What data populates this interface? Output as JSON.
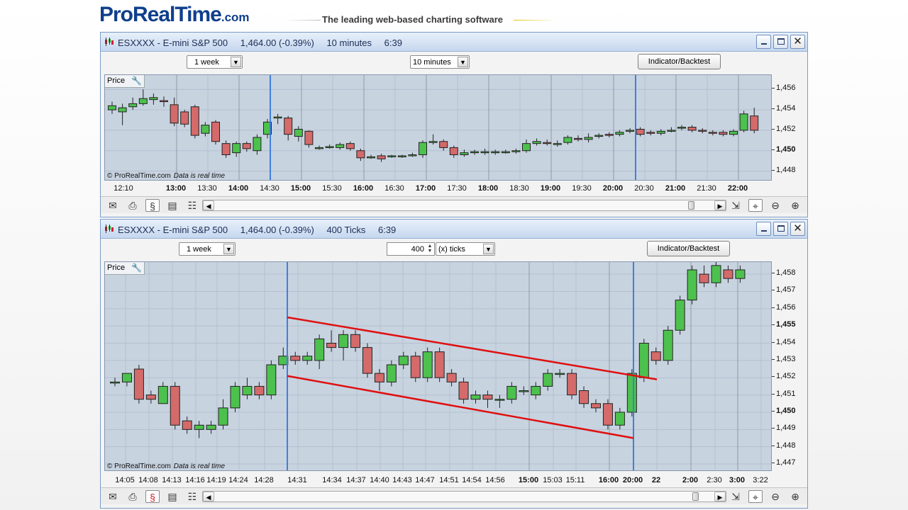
{
  "banner": {
    "logo_pro": "Pro",
    "logo_realtime": "RealTime",
    "logo_com": ".com",
    "tagline": "The leading web-based charting software"
  },
  "colors": {
    "up_candle": "#4dc14d",
    "down_candle": "#d46a6a",
    "vline": "#3f7fe0",
    "trendline": "#e01010",
    "plot_bg": "#c8d3e0"
  },
  "windows": [
    {
      "title": {
        "symbol": "ESXXXX - E-mini S&P 500",
        "price": "1,464.00 (-0.39%)",
        "timeframe": "10 minutes",
        "time": "6:39"
      },
      "controls": {
        "period_select": "1 week",
        "interval_select": "10 minutes",
        "indicator_button": "Indicator/Backtest"
      },
      "price_label": "Price",
      "copyright": "© ProRealTime.com",
      "data_note": "Data is real time",
      "y_ticks": [
        {
          "label": "1,456",
          "v": 1456,
          "bold": false
        },
        {
          "label": "1,454",
          "v": 1454,
          "bold": false
        },
        {
          "label": "1,452",
          "v": 1452,
          "bold": false
        },
        {
          "label": "1,450",
          "v": 1450,
          "bold": true
        },
        {
          "label": "1,448",
          "v": 1448,
          "bold": false
        }
      ],
      "x_ticks": [
        {
          "label": "12:10",
          "bold": false
        },
        {
          "label": "13:00",
          "bold": true
        },
        {
          "label": "13:30",
          "bold": false
        },
        {
          "label": "14:00",
          "bold": true
        },
        {
          "label": "14:30",
          "bold": false
        },
        {
          "label": "15:00",
          "bold": true
        },
        {
          "label": "15:30",
          "bold": false
        },
        {
          "label": "16:00",
          "bold": true
        },
        {
          "label": "16:30",
          "bold": false
        },
        {
          "label": "17:00",
          "bold": true
        },
        {
          "label": "17:30",
          "bold": false
        },
        {
          "label": "18:00",
          "bold": true
        },
        {
          "label": "18:30",
          "bold": false
        },
        {
          "label": "19:00",
          "bold": true
        },
        {
          "label": "19:30",
          "bold": false
        },
        {
          "label": "20:00",
          "bold": true
        },
        {
          "label": "20:30",
          "bold": false
        },
        {
          "label": "21:00",
          "bold": true
        },
        {
          "label": "21:30",
          "bold": false
        },
        {
          "label": "22:00",
          "bold": true
        }
      ],
      "candles": [
        [
          1454.0,
          1454.4,
          1453.6,
          1454.8
        ],
        [
          1453.8,
          1454.2,
          1452.5,
          1454.6
        ],
        [
          1454.3,
          1454.6,
          1454.0,
          1455.2
        ],
        [
          1454.6,
          1455.1,
          1454.4,
          1456.0
        ],
        [
          1455.0,
          1455.2,
          1454.5,
          1455.6
        ],
        [
          1454.9,
          1454.8,
          1454.3,
          1455.3
        ],
        [
          1454.5,
          1452.7,
          1452.4,
          1455.2
        ],
        [
          1453.8,
          1452.6,
          1452.3,
          1454.0
        ],
        [
          1454.3,
          1451.5,
          1451.2,
          1454.5
        ],
        [
          1451.7,
          1452.5,
          1451.4,
          1452.8
        ],
        [
          1452.8,
          1450.9,
          1450.6,
          1453.0
        ],
        [
          1450.7,
          1449.6,
          1449.3,
          1451.0
        ],
        [
          1449.8,
          1450.7,
          1449.4,
          1450.9
        ],
        [
          1450.7,
          1450.2,
          1449.9,
          1450.9
        ],
        [
          1450.0,
          1451.3,
          1449.6,
          1451.6
        ],
        [
          1451.6,
          1452.8,
          1451.2,
          1453.1
        ],
        [
          1453.3,
          1453.3,
          1452.6,
          1453.6
        ],
        [
          1453.2,
          1451.6,
          1451.0,
          1453.4
        ],
        [
          1451.4,
          1452.1,
          1450.9,
          1452.4
        ],
        [
          1451.9,
          1450.6,
          1450.3,
          1452.0
        ],
        [
          1450.3,
          1450.3,
          1450.1,
          1450.5
        ],
        [
          1450.4,
          1450.4,
          1450.2,
          1450.6
        ],
        [
          1450.3,
          1450.6,
          1450.1,
          1450.8
        ],
        [
          1450.7,
          1450.2,
          1450.0,
          1450.9
        ],
        [
          1450.0,
          1449.3,
          1449.0,
          1450.2
        ],
        [
          1449.3,
          1449.4,
          1449.2,
          1449.6
        ],
        [
          1449.5,
          1449.2,
          1448.9,
          1449.7
        ],
        [
          1449.5,
          1449.5,
          1449.3,
          1449.6
        ],
        [
          1449.5,
          1449.5,
          1449.3,
          1449.6
        ],
        [
          1449.6,
          1449.6,
          1449.4,
          1449.8
        ],
        [
          1449.6,
          1450.8,
          1449.3,
          1451.0
        ],
        [
          1450.8,
          1450.9,
          1450.6,
          1451.6
        ],
        [
          1450.9,
          1450.3,
          1450.0,
          1451.1
        ],
        [
          1450.3,
          1449.6,
          1449.3,
          1450.5
        ],
        [
          1449.6,
          1449.8,
          1449.4,
          1450.1
        ],
        [
          1449.8,
          1449.9,
          1449.6,
          1450.1
        ],
        [
          1449.8,
          1449.9,
          1449.6,
          1450.2
        ],
        [
          1449.8,
          1449.9,
          1449.6,
          1450.1
        ],
        [
          1449.9,
          1449.9,
          1449.7,
          1450.1
        ],
        [
          1449.9,
          1450.0,
          1449.7,
          1450.2
        ],
        [
          1450.0,
          1450.7,
          1449.8,
          1451.1
        ],
        [
          1450.7,
          1450.9,
          1450.5,
          1451.2
        ],
        [
          1450.8,
          1450.7,
          1450.5,
          1451.1
        ],
        [
          1450.6,
          1450.7,
          1450.4,
          1451.0
        ],
        [
          1450.8,
          1451.3,
          1450.6,
          1451.5
        ],
        [
          1451.2,
          1451.1,
          1450.9,
          1451.5
        ],
        [
          1451.1,
          1451.3,
          1450.8,
          1451.7
        ],
        [
          1451.4,
          1451.5,
          1451.2,
          1451.7
        ],
        [
          1451.6,
          1451.5,
          1451.3,
          1451.8
        ],
        [
          1451.6,
          1451.8,
          1451.4,
          1452.0
        ],
        [
          1452.0,
          1452.0,
          1451.7,
          1452.2
        ],
        [
          1452.1,
          1451.6,
          1451.4,
          1452.3
        ],
        [
          1451.8,
          1451.7,
          1451.5,
          1452.0
        ],
        [
          1451.7,
          1451.9,
          1451.5,
          1452.1
        ],
        [
          1452.0,
          1452.0,
          1451.8,
          1452.3
        ],
        [
          1452.2,
          1452.3,
          1452.0,
          1452.5
        ],
        [
          1452.3,
          1452.0,
          1451.8,
          1452.5
        ],
        [
          1452.0,
          1451.9,
          1451.7,
          1452.2
        ],
        [
          1451.8,
          1451.7,
          1451.5,
          1452.0
        ],
        [
          1451.8,
          1451.6,
          1451.4,
          1452.0
        ],
        [
          1451.6,
          1451.9,
          1451.4,
          1452.1
        ],
        [
          1452.0,
          1453.6,
          1451.8,
          1453.9
        ],
        [
          1453.4,
          1452.0,
          1451.7,
          1454.2
        ]
      ]
    },
    {
      "title": {
        "symbol": "ESXXXX - E-mini S&P 500",
        "price": "1,464.00 (-0.39%)",
        "timeframe": "400 Ticks",
        "time": "6:39"
      },
      "controls": {
        "period_select": "1 week",
        "tick_value": "400",
        "tick_unit_select": "(x) ticks",
        "indicator_button": "Indicator/Backtest"
      },
      "price_label": "Price",
      "copyright": "© ProRealTime.com",
      "data_note": "Data is real time",
      "y_ticks": [
        {
          "label": "1,458",
          "v": 1458,
          "bold": false
        },
        {
          "label": "1,457",
          "v": 1457,
          "bold": false
        },
        {
          "label": "1,456",
          "v": 1456,
          "bold": false
        },
        {
          "label": "1,455",
          "v": 1455,
          "bold": true
        },
        {
          "label": "1,454",
          "v": 1454,
          "bold": false
        },
        {
          "label": "1,453",
          "v": 1453,
          "bold": false
        },
        {
          "label": "1,452",
          "v": 1452,
          "bold": false
        },
        {
          "label": "1,451",
          "v": 1451,
          "bold": false
        },
        {
          "label": "1,450",
          "v": 1450,
          "bold": true
        },
        {
          "label": "1,449",
          "v": 1449,
          "bold": false
        },
        {
          "label": "1,448",
          "v": 1448,
          "bold": false
        },
        {
          "label": "1,447",
          "v": 1447,
          "bold": false
        }
      ],
      "x_ticks": [
        {
          "label": "14:05",
          "bold": false
        },
        {
          "label": "14:08",
          "bold": false
        },
        {
          "label": "14:13",
          "bold": false
        },
        {
          "label": "14:16",
          "bold": false
        },
        {
          "label": "14:19",
          "bold": false
        },
        {
          "label": "14:24",
          "bold": false
        },
        {
          "label": "14:28",
          "bold": false
        },
        {
          "label": "14:31",
          "bold": false
        },
        {
          "label": "14:34",
          "bold": false
        },
        {
          "label": "14:37",
          "bold": false
        },
        {
          "label": "14:40",
          "bold": false
        },
        {
          "label": "14:43",
          "bold": false
        },
        {
          "label": "14:47",
          "bold": false
        },
        {
          "label": "14:51",
          "bold": false
        },
        {
          "label": "14:54",
          "bold": false
        },
        {
          "label": "14:56",
          "bold": false
        },
        {
          "label": "15:00",
          "bold": true
        },
        {
          "label": "15:03",
          "bold": false
        },
        {
          "label": "15:11",
          "bold": false
        },
        {
          "label": "16:00",
          "bold": true
        },
        {
          "label": "20:00",
          "bold": true
        },
        {
          "label": "22",
          "bold": true
        },
        {
          "label": "2:00",
          "bold": true
        },
        {
          "label": "2:30",
          "bold": false
        },
        {
          "label": "3:00",
          "bold": true
        },
        {
          "label": "3:22",
          "bold": false
        }
      ],
      "candles": [
        [
          1451.75,
          1451.75,
          1451.5,
          1452.0
        ],
        [
          1451.75,
          1452.25,
          1451.5,
          1452.25
        ],
        [
          1452.5,
          1450.75,
          1450.5,
          1452.75
        ],
        [
          1451.0,
          1450.75,
          1450.5,
          1451.25
        ],
        [
          1450.5,
          1451.5,
          1450.5,
          1451.75
        ],
        [
          1451.5,
          1449.25,
          1449.0,
          1451.75
        ],
        [
          1449.5,
          1449.0,
          1448.75,
          1449.75
        ],
        [
          1449.0,
          1449.25,
          1448.5,
          1449.5
        ],
        [
          1449.0,
          1449.25,
          1448.75,
          1449.5
        ],
        [
          1449.25,
          1450.25,
          1449.0,
          1450.75
        ],
        [
          1450.25,
          1451.5,
          1450.0,
          1451.75
        ],
        [
          1451.0,
          1451.5,
          1450.75,
          1452.0
        ],
        [
          1451.5,
          1451.0,
          1450.75,
          1451.75
        ],
        [
          1451.0,
          1452.75,
          1450.75,
          1453.0
        ],
        [
          1452.75,
          1453.25,
          1452.5,
          1453.75
        ],
        [
          1453.25,
          1453.0,
          1452.75,
          1453.5
        ],
        [
          1453.0,
          1453.25,
          1452.75,
          1453.5
        ],
        [
          1453.0,
          1454.25,
          1452.5,
          1454.5
        ],
        [
          1454.0,
          1453.75,
          1453.5,
          1454.75
        ],
        [
          1453.75,
          1454.5,
          1453.0,
          1454.75
        ],
        [
          1454.5,
          1453.75,
          1453.5,
          1454.75
        ],
        [
          1453.75,
          1452.25,
          1452.0,
          1454.0
        ],
        [
          1452.25,
          1451.75,
          1451.25,
          1452.5
        ],
        [
          1451.75,
          1452.75,
          1451.5,
          1453.0
        ],
        [
          1452.75,
          1453.25,
          1452.5,
          1453.5
        ],
        [
          1453.25,
          1452.0,
          1451.75,
          1453.5
        ],
        [
          1452.0,
          1453.5,
          1451.75,
          1453.75
        ],
        [
          1453.5,
          1452.0,
          1451.75,
          1453.75
        ],
        [
          1452.25,
          1451.75,
          1451.5,
          1452.5
        ],
        [
          1451.75,
          1450.75,
          1450.5,
          1452.0
        ],
        [
          1450.75,
          1451.0,
          1450.5,
          1451.25
        ],
        [
          1451.0,
          1450.75,
          1450.25,
          1451.25
        ],
        [
          1450.75,
          1450.75,
          1450.25,
          1451.0
        ],
        [
          1450.75,
          1451.5,
          1450.5,
          1451.75
        ],
        [
          1451.25,
          1451.25,
          1451.0,
          1451.5
        ],
        [
          1451.0,
          1451.5,
          1450.75,
          1451.75
        ],
        [
          1451.5,
          1452.25,
          1451.25,
          1452.5
        ],
        [
          1452.25,
          1452.25,
          1452.0,
          1452.5
        ],
        [
          1452.25,
          1451.0,
          1450.75,
          1452.5
        ],
        [
          1451.25,
          1450.5,
          1450.25,
          1451.5
        ],
        [
          1450.5,
          1450.25,
          1450.0,
          1450.75
        ],
        [
          1450.5,
          1449.25,
          1449.0,
          1450.75
        ],
        [
          1449.25,
          1450.0,
          1449.0,
          1450.25
        ],
        [
          1450.0,
          1452.25,
          1449.75,
          1452.5
        ],
        [
          1452.0,
          1454.0,
          1451.75,
          1454.25
        ],
        [
          1453.5,
          1453.0,
          1452.75,
          1453.75
        ],
        [
          1453.0,
          1454.75,
          1452.75,
          1455.0
        ],
        [
          1454.75,
          1456.5,
          1454.5,
          1456.75
        ],
        [
          1456.5,
          1458.25,
          1456.25,
          1458.5
        ],
        [
          1458.0,
          1457.5,
          1457.25,
          1458.5
        ],
        [
          1457.5,
          1458.5,
          1457.25,
          1458.75
        ],
        [
          1458.25,
          1457.75,
          1457.5,
          1458.5
        ],
        [
          1457.75,
          1458.25,
          1457.5,
          1458.5
        ]
      ]
    }
  ]
}
